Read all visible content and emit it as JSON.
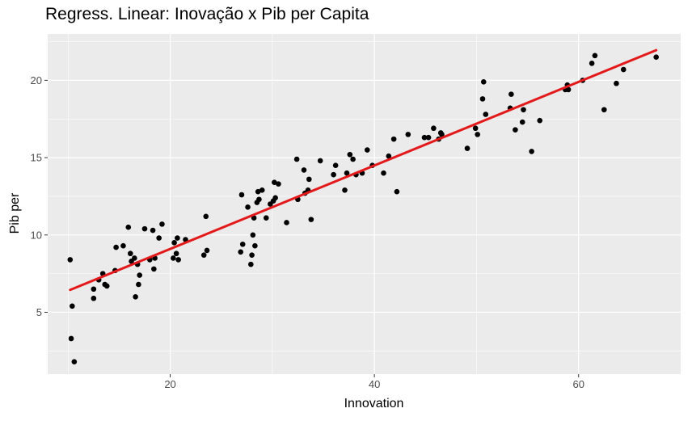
{
  "chart_data": {
    "type": "scatter",
    "title": "Regress. Linear: Inovação x Pib per Capita",
    "xlabel": "Innovation",
    "ylabel": "Pib per",
    "xlim": [
      8.0,
      70.0
    ],
    "ylim": [
      1.0,
      23.0
    ],
    "x_ticks": [
      20,
      40,
      60
    ],
    "y_ticks": [
      5,
      10,
      15,
      20
    ],
    "x_tick_labels": [
      "20",
      "40",
      "60"
    ],
    "y_tick_labels": [
      "5",
      "10",
      "15",
      "20"
    ],
    "grid": true,
    "legend": "none",
    "colors": {
      "panel": "#ebebeb",
      "grid": "#ffffff",
      "point": "#000000",
      "fit_line": "#e31a1c"
    },
    "points": [
      [
        10.2,
        8.4
      ],
      [
        10.4,
        5.4
      ],
      [
        10.3,
        3.3
      ],
      [
        10.6,
        1.8
      ],
      [
        12.5,
        6.5
      ],
      [
        12.5,
        5.9
      ],
      [
        13.0,
        7.1
      ],
      [
        13.4,
        7.5
      ],
      [
        13.6,
        6.8
      ],
      [
        13.8,
        6.7
      ],
      [
        14.6,
        7.7
      ],
      [
        14.7,
        9.2
      ],
      [
        15.4,
        9.3
      ],
      [
        15.9,
        10.5
      ],
      [
        16.1,
        8.8
      ],
      [
        16.2,
        8.3
      ],
      [
        16.5,
        8.5
      ],
      [
        16.6,
        6.0
      ],
      [
        16.8,
        8.1
      ],
      [
        16.9,
        6.8
      ],
      [
        17.0,
        7.4
      ],
      [
        17.5,
        10.4
      ],
      [
        18.0,
        8.4
      ],
      [
        18.3,
        10.3
      ],
      [
        18.4,
        7.8
      ],
      [
        18.5,
        8.5
      ],
      [
        18.9,
        9.8
      ],
      [
        19.2,
        10.7
      ],
      [
        20.3,
        8.5
      ],
      [
        20.4,
        9.5
      ],
      [
        20.6,
        8.8
      ],
      [
        20.7,
        9.8
      ],
      [
        20.8,
        8.4
      ],
      [
        21.5,
        9.7
      ],
      [
        23.3,
        8.7
      ],
      [
        23.5,
        11.2
      ],
      [
        23.6,
        9.0
      ],
      [
        26.9,
        8.9
      ],
      [
        27.0,
        12.6
      ],
      [
        27.1,
        9.4
      ],
      [
        27.6,
        11.8
      ],
      [
        27.9,
        8.1
      ],
      [
        28.0,
        8.7
      ],
      [
        28.1,
        10.0
      ],
      [
        28.3,
        9.3
      ],
      [
        28.2,
        11.1
      ],
      [
        28.5,
        12.1
      ],
      [
        28.6,
        12.8
      ],
      [
        28.7,
        12.3
      ],
      [
        29.0,
        12.9
      ],
      [
        29.4,
        11.1
      ],
      [
        29.8,
        12.0
      ],
      [
        30.1,
        12.2
      ],
      [
        30.2,
        13.4
      ],
      [
        30.3,
        12.4
      ],
      [
        30.6,
        13.3
      ],
      [
        31.4,
        10.8
      ],
      [
        32.4,
        14.9
      ],
      [
        32.5,
        12.3
      ],
      [
        33.1,
        14.2
      ],
      [
        33.2,
        12.7
      ],
      [
        33.5,
        12.9
      ],
      [
        33.6,
        13.6
      ],
      [
        33.8,
        11.0
      ],
      [
        34.7,
        14.8
      ],
      [
        36.0,
        13.9
      ],
      [
        36.2,
        14.5
      ],
      [
        37.1,
        12.9
      ],
      [
        37.3,
        14.0
      ],
      [
        37.6,
        15.2
      ],
      [
        37.9,
        14.9
      ],
      [
        38.2,
        13.9
      ],
      [
        38.8,
        14.0
      ],
      [
        39.3,
        15.5
      ],
      [
        39.8,
        14.5
      ],
      [
        40.9,
        14.0
      ],
      [
        41.4,
        15.1
      ],
      [
        41.9,
        16.2
      ],
      [
        42.2,
        12.8
      ],
      [
        43.3,
        16.5
      ],
      [
        44.9,
        16.3
      ],
      [
        45.3,
        16.3
      ],
      [
        45.8,
        16.9
      ],
      [
        46.3,
        16.2
      ],
      [
        46.5,
        16.6
      ],
      [
        46.6,
        16.5
      ],
      [
        49.1,
        15.6
      ],
      [
        49.9,
        16.9
      ],
      [
        50.1,
        16.5
      ],
      [
        50.6,
        18.8
      ],
      [
        50.7,
        19.9
      ],
      [
        50.9,
        17.8
      ],
      [
        53.3,
        18.2
      ],
      [
        53.4,
        19.1
      ],
      [
        53.8,
        16.8
      ],
      [
        54.5,
        17.3
      ],
      [
        54.6,
        18.1
      ],
      [
        55.4,
        15.4
      ],
      [
        56.2,
        17.4
      ],
      [
        58.7,
        19.4
      ],
      [
        58.9,
        19.7
      ],
      [
        59.0,
        19.4
      ],
      [
        60.4,
        20.0
      ],
      [
        61.3,
        21.1
      ],
      [
        61.6,
        21.6
      ],
      [
        62.5,
        18.1
      ],
      [
        63.7,
        19.8
      ],
      [
        64.4,
        20.7
      ],
      [
        67.6,
        21.5
      ]
    ],
    "fit_line": {
      "x": [
        10.2,
        67.6
      ],
      "y": [
        6.45,
        21.95
      ]
    }
  }
}
